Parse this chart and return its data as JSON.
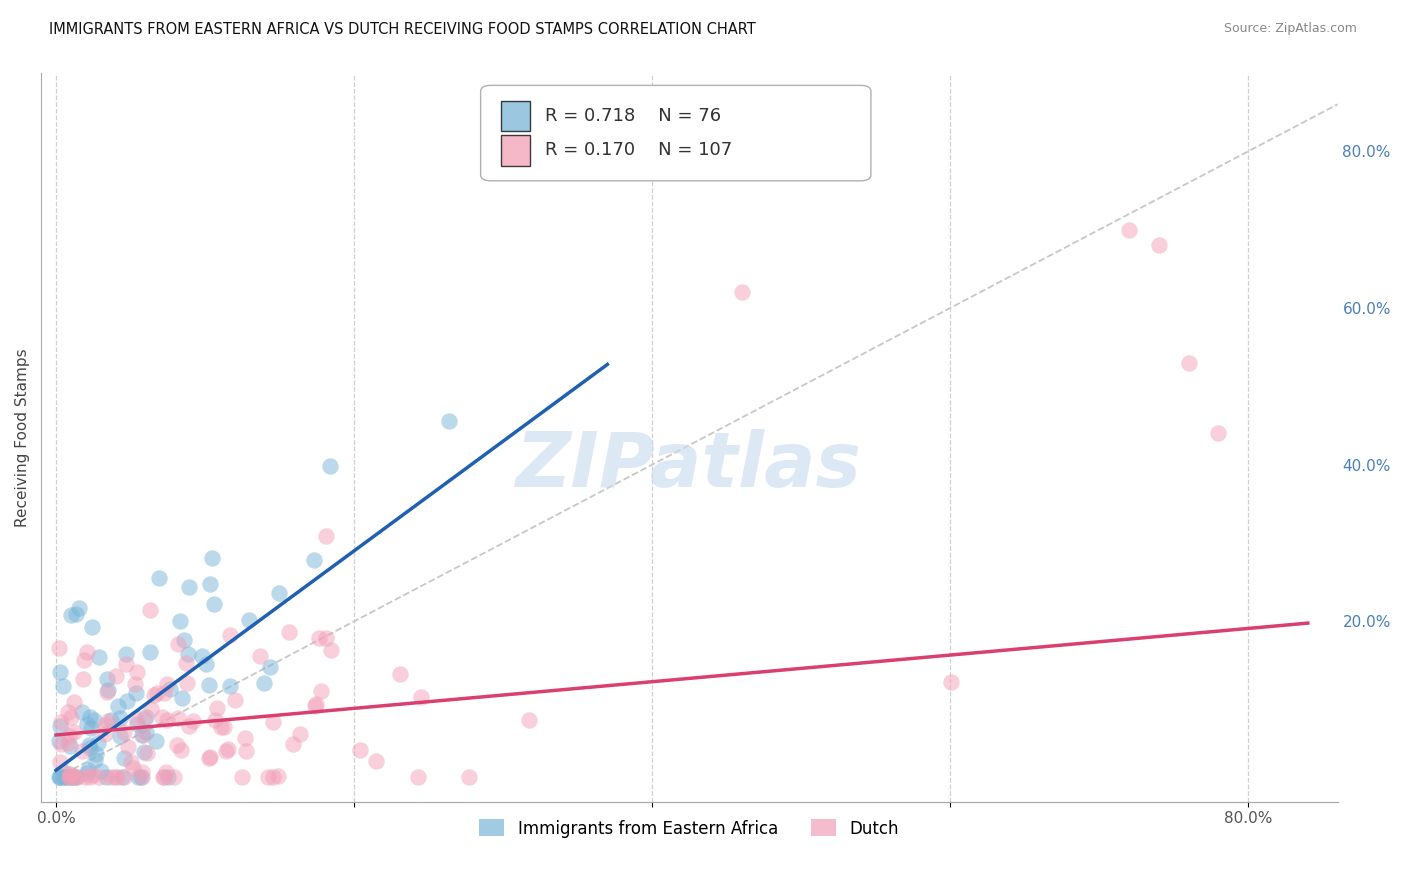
{
  "title": "IMMIGRANTS FROM EASTERN AFRICA VS DUTCH RECEIVING FOOD STAMPS CORRELATION CHART",
  "source": "Source: ZipAtlas.com",
  "ylabel": "Receiving Food Stamps",
  "xlim": [
    -0.01,
    0.86
  ],
  "ylim": [
    -0.03,
    0.9
  ],
  "xtick_positions": [
    0.0,
    0.2,
    0.4,
    0.6,
    0.8
  ],
  "xtick_labels": [
    "0.0%",
    "",
    "",
    "",
    "80.0%"
  ],
  "ytick_right_positions": [
    0.2,
    0.4,
    0.6,
    0.8
  ],
  "ytick_right_labels": [
    "20.0%",
    "40.0%",
    "60.0%",
    "80.0%"
  ],
  "blue_color": "#7ab5d8",
  "pink_color": "#f2a0b8",
  "blue_line_color": "#2060b0",
  "pink_line_color": "#d94070",
  "diag_line_color": "#b0b0b0",
  "grid_color": "#d0d0d0",
  "right_tick_color": "#4a7fba",
  "watermark": "ZIPatlas",
  "legend_R1": "0.718",
  "legend_N1": "76",
  "legend_R2": "0.170",
  "legend_N2": "107",
  "blue_n": 76,
  "pink_n": 107,
  "blue_seed": 10,
  "pink_seed": 25,
  "blue_slope": 1.4,
  "blue_intercept": 0.01,
  "pink_slope": 0.17,
  "pink_intercept": 0.055,
  "blue_line_x_end": 0.37,
  "pink_line_x_end": 0.84,
  "legend_label1": "Immigrants from Eastern Africa",
  "legend_label2": "Dutch"
}
